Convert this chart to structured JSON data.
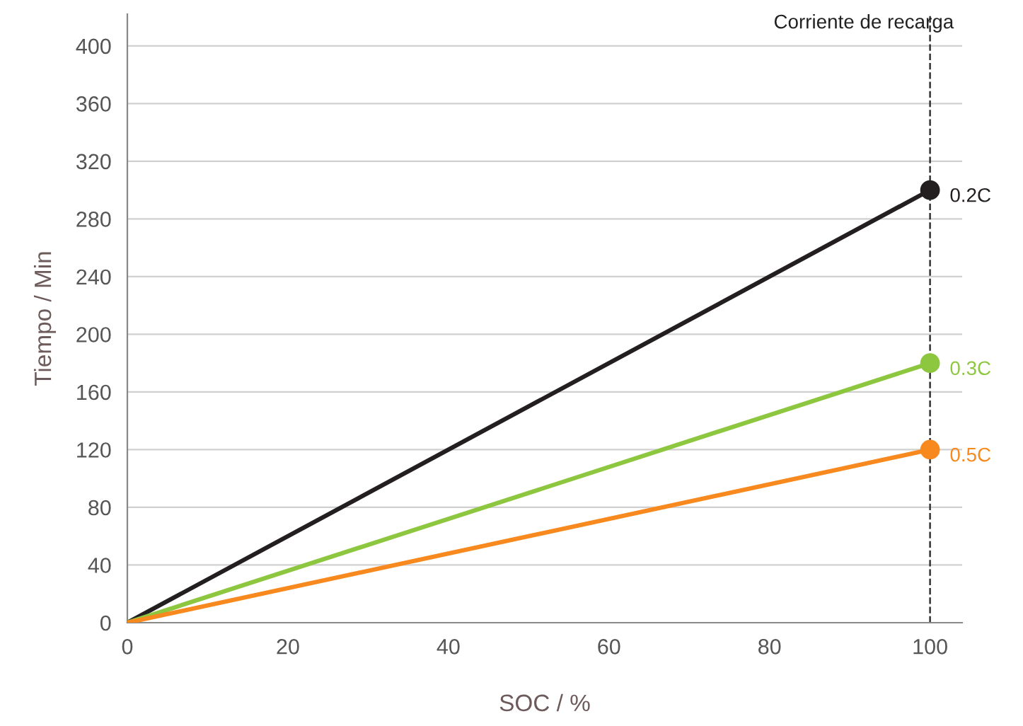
{
  "chart_data": {
    "type": "line",
    "xlabel": "SOC / %",
    "ylabel": "Tiempo / Min",
    "legend_title": "Corriente de recarga",
    "x": [
      0,
      100
    ],
    "series": [
      {
        "name": "0.2C",
        "color": "#231f20",
        "values": [
          0,
          300
        ]
      },
      {
        "name": "0.3C",
        "color": "#8dc63f",
        "values": [
          0,
          180
        ]
      },
      {
        "name": "0.5C",
        "color": "#f7891f",
        "values": [
          0,
          120
        ]
      }
    ],
    "xlim": [
      0,
      104
    ],
    "ylim": [
      0,
      422
    ],
    "xticks": [
      0,
      20,
      40,
      60,
      80,
      100
    ],
    "yticks": [
      0,
      40,
      80,
      120,
      160,
      200,
      240,
      280,
      320,
      360,
      400
    ],
    "grid": "y",
    "marker": "circle",
    "line_style": "solid",
    "ref_lines": [
      {
        "axis": "x",
        "value": 100,
        "color": "#333333",
        "line_style": "dashed"
      }
    ]
  }
}
